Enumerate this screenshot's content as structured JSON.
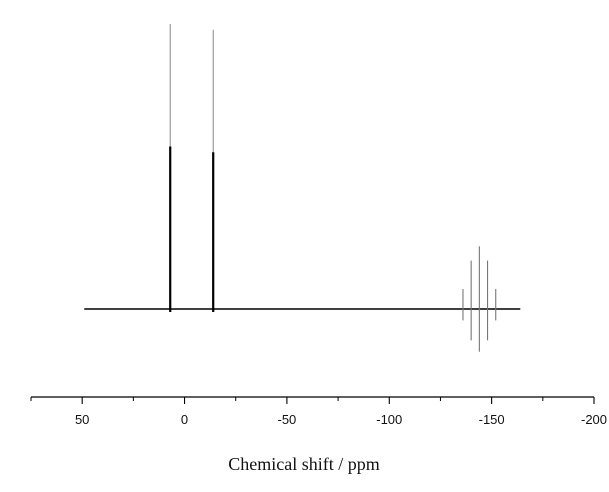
{
  "chart_data": {
    "type": "line",
    "title": "",
    "xlabel": "Chemical shift / ppm",
    "ylabel": "",
    "x_axis_reversed": true,
    "xlim": [
      75,
      -200
    ],
    "xticks": [
      50,
      0,
      -50,
      -100,
      -150,
      -200
    ],
    "xtick_labels": [
      "50",
      "0",
      "-50",
      "-100",
      "-150",
      "-200"
    ],
    "y_axis_visible": false,
    "grid": false,
    "baseline_range_ppm": [
      49,
      -164
    ],
    "series": [
      {
        "style": "black-peaks",
        "color": "#000000",
        "peaks_ppm": [
          7,
          -14
        ],
        "relative_intensity": [
          0.57,
          0.55
        ]
      },
      {
        "style": "gray-multiplet",
        "color": "#777777",
        "peaks_ppm": [
          -136,
          -140,
          -144,
          -148,
          -152
        ],
        "relative_intensity_up": [
          0.07,
          0.17,
          0.22,
          0.17,
          0.07
        ],
        "relative_intensity_down": [
          0.04,
          0.11,
          0.15,
          0.11,
          0.04
        ]
      },
      {
        "style": "gray-overlay-peaks",
        "color": "#888888",
        "peaks_ppm": [
          7,
          -14
        ],
        "relative_intensity": [
          1.0,
          0.98
        ]
      }
    ]
  }
}
